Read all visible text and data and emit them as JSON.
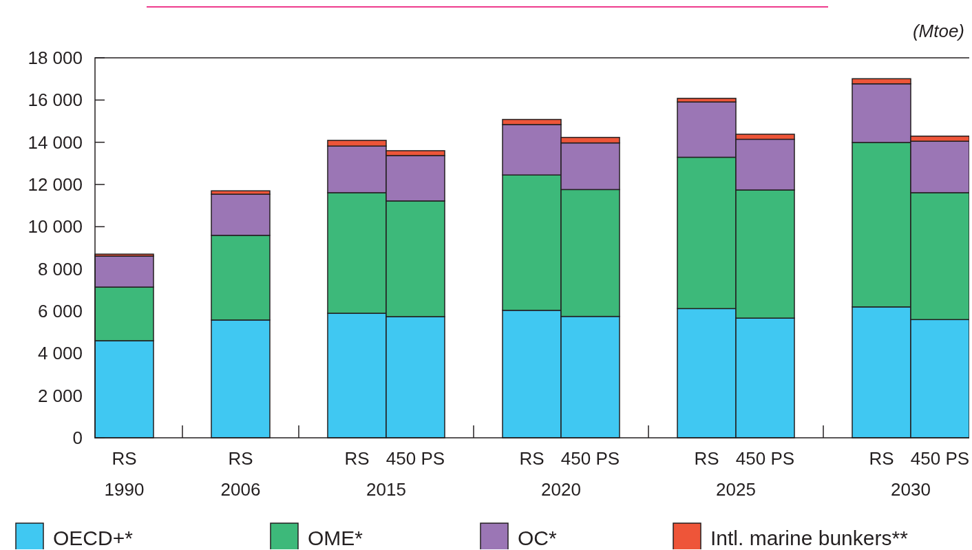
{
  "chart_data": {
    "type": "bar",
    "stacked": true,
    "ylabel": "(Mtoe)",
    "categories": [
      "RS",
      "RS",
      "RS",
      "450 PS",
      "RS",
      "450 PS",
      "RS",
      "450 PS",
      "RS",
      "450 PS"
    ],
    "annotations": [
      "1990",
      "2006",
      "2015",
      "2020",
      "2025",
      "2030"
    ],
    "ylim": [
      0,
      18000
    ],
    "yticks": [
      0,
      {
        "value": 2000,
        "label": "2 000"
      },
      {
        "value": 4000,
        "label": "4 000"
      },
      {
        "value": 6000,
        "label": "6 000"
      },
      {
        "value": 8000,
        "label": "8 000"
      },
      {
        "value": 10000,
        "label": "10 000"
      },
      {
        "value": 12000,
        "label": "12 000"
      },
      {
        "value": 14000,
        "label": "14 000"
      },
      {
        "value": 16000,
        "label": "16 000"
      },
      {
        "value": 18000,
        "label": "18 000"
      }
    ],
    "legend": "bottom",
    "grid": false,
    "series": [
      {
        "name": "OECD+*",
        "color": "#40c8f2",
        "values": [
          4600,
          5580,
          5900,
          5740,
          6040,
          5750,
          6120,
          5670,
          6200,
          5600
        ]
      },
      {
        "name": "OME*",
        "color": "#3db97a",
        "values": [
          2540,
          4010,
          5710,
          5480,
          6410,
          6010,
          7170,
          6070,
          7790,
          6010
        ]
      },
      {
        "name": "OC*",
        "color": "#9b76b5",
        "values": [
          1470,
          1950,
          2210,
          2150,
          2390,
          2210,
          2620,
          2400,
          2780,
          2440
        ]
      },
      {
        "name": "Intl. marine bunkers**",
        "color": "#ee5539",
        "values": [
          90,
          160,
          270,
          230,
          240,
          260,
          170,
          240,
          240,
          240
        ]
      }
    ]
  }
}
